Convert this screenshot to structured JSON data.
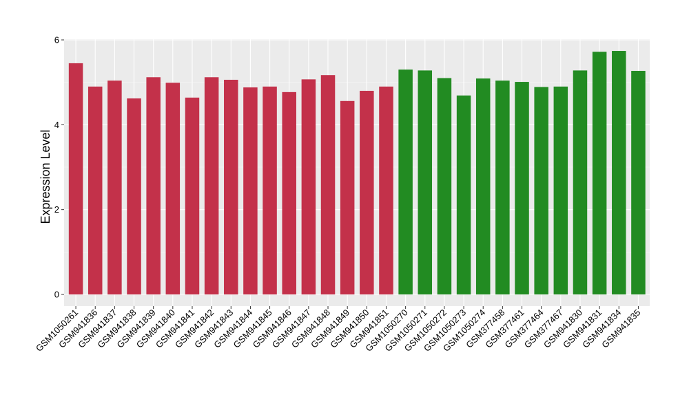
{
  "chart_data": {
    "type": "bar",
    "ylabel": "Expression Level",
    "xlabel": "",
    "ylim": [
      0,
      6
    ],
    "yticks": [
      0,
      2,
      4,
      6
    ],
    "grid": true,
    "background": "#ebebeb",
    "categories": [
      "GSM1050261",
      "GSM941836",
      "GSM941837",
      "GSM941838",
      "GSM941839",
      "GSM941840",
      "GSM941841",
      "GSM941842",
      "GSM941843",
      "GSM941844",
      "GSM941845",
      "GSM941846",
      "GSM941847",
      "GSM941848",
      "GSM941849",
      "GSM941850",
      "GSM941851",
      "GSM1050270",
      "GSM1050271",
      "GSM1050272",
      "GSM1050273",
      "GSM1050274",
      "GSM377458",
      "GSM377461",
      "GSM377464",
      "GSM377467",
      "GSM941830",
      "GSM941831",
      "GSM941834",
      "GSM941835"
    ],
    "values": [
      5.45,
      4.9,
      5.04,
      4.62,
      5.12,
      4.99,
      4.64,
      5.12,
      5.06,
      4.88,
      4.9,
      4.77,
      5.07,
      5.17,
      4.56,
      4.8,
      4.9,
      5.3,
      5.28,
      5.1,
      4.69,
      5.09,
      5.04,
      5.01,
      4.89,
      4.9,
      5.28,
      5.72,
      5.74,
      5.27
    ],
    "colors": [
      "#c3314a",
      "#c3314a",
      "#c3314a",
      "#c3314a",
      "#c3314a",
      "#c3314a",
      "#c3314a",
      "#c3314a",
      "#c3314a",
      "#c3314a",
      "#c3314a",
      "#c3314a",
      "#c3314a",
      "#c3314a",
      "#c3314a",
      "#c3314a",
      "#c3314a",
      "#228b22",
      "#228b22",
      "#228b22",
      "#228b22",
      "#228b22",
      "#228b22",
      "#228b22",
      "#228b22",
      "#228b22",
      "#228b22",
      "#228b22",
      "#228b22",
      "#228b22"
    ]
  }
}
